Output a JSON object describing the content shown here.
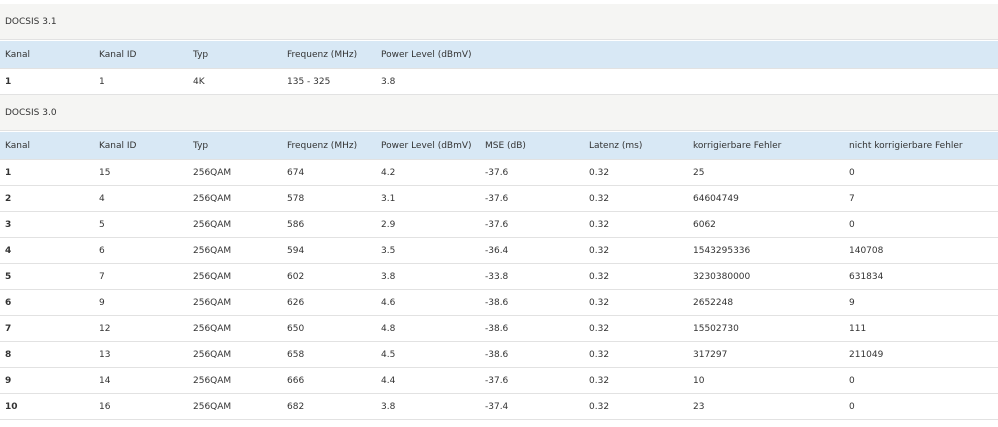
{
  "sections": [
    {
      "title": "DOCSIS 3.1",
      "headers": [
        "Kanal",
        "Kanal ID",
        "Typ",
        "Frequenz (MHz)",
        "Power Level (dBmV)"
      ],
      "rows": [
        [
          "1",
          "1",
          "4K",
          "135 - 325",
          "3.8"
        ]
      ]
    },
    {
      "title": "DOCSIS 3.0",
      "headers": [
        "Kanal",
        "Kanal ID",
        "Typ",
        "Frequenz (MHz)",
        "Power Level (dBmV)",
        "MSE (dB)",
        "Latenz (ms)",
        "korrigierbare Fehler",
        "nicht korrigierbare Fehler"
      ],
      "rows": [
        [
          "1",
          "15",
          "256QAM",
          "674",
          "4.2",
          "-37.6",
          "0.32",
          "25",
          "0"
        ],
        [
          "2",
          "4",
          "256QAM",
          "578",
          "3.1",
          "-37.6",
          "0.32",
          "64604749",
          "7"
        ],
        [
          "3",
          "5",
          "256QAM",
          "586",
          "2.9",
          "-37.6",
          "0.32",
          "6062",
          "0"
        ],
        [
          "4",
          "6",
          "256QAM",
          "594",
          "3.5",
          "-36.4",
          "0.32",
          "1543295336",
          "140708"
        ],
        [
          "5",
          "7",
          "256QAM",
          "602",
          "3.8",
          "-33.8",
          "0.32",
          "3230380000",
          "631834"
        ],
        [
          "6",
          "9",
          "256QAM",
          "626",
          "4.6",
          "-38.6",
          "0.32",
          "2652248",
          "9"
        ],
        [
          "7",
          "12",
          "256QAM",
          "650",
          "4.8",
          "-38.6",
          "0.32",
          "15502730",
          "111"
        ],
        [
          "8",
          "13",
          "256QAM",
          "658",
          "4.5",
          "-38.6",
          "0.32",
          "317297",
          "211049"
        ],
        [
          "9",
          "14",
          "256QAM",
          "666",
          "4.4",
          "-37.6",
          "0.32",
          "10",
          "0"
        ],
        [
          "10",
          "16",
          "256QAM",
          "682",
          "3.8",
          "-37.4",
          "0.32",
          "23",
          "0"
        ]
      ]
    }
  ]
}
